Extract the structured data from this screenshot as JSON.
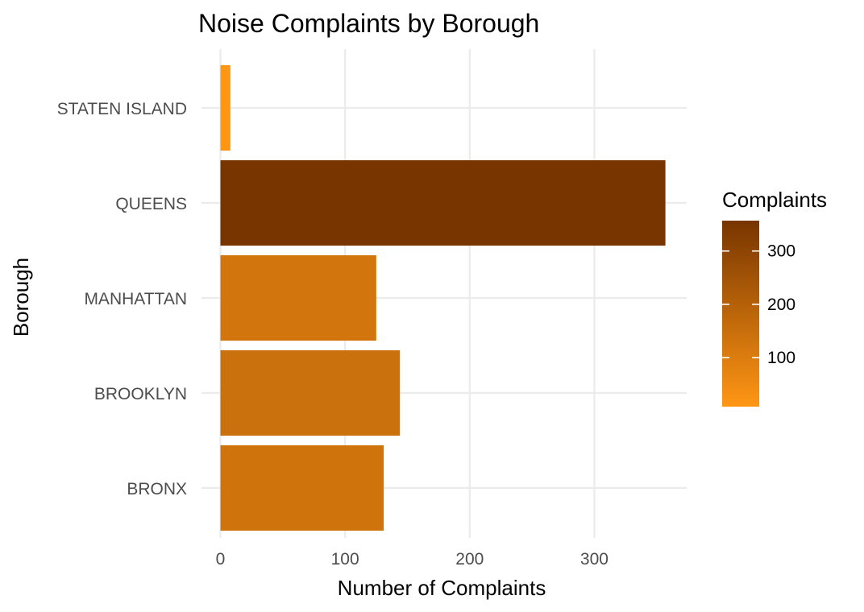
{
  "chart_data": {
    "type": "bar",
    "orientation": "horizontal",
    "title": "Noise Complaints by Borough",
    "xlabel": "Number of Complaints",
    "ylabel": "Borough",
    "categories": [
      "BRONX",
      "BROOKLYN",
      "MANHATTAN",
      "QUEENS",
      "STATEN ISLAND"
    ],
    "values": [
      131,
      144,
      125,
      357,
      8
    ],
    "xticks": [
      "0",
      "100",
      "200",
      "300"
    ],
    "xlim": [
      0,
      375
    ],
    "grid": true,
    "legend": {
      "title": "Complaints",
      "type": "colorbar",
      "placement": "right",
      "ticks": [
        "100",
        "200",
        "300"
      ],
      "range": [
        8,
        357
      ],
      "color_low": "#ff9614",
      "color_high": "#783500"
    }
  }
}
